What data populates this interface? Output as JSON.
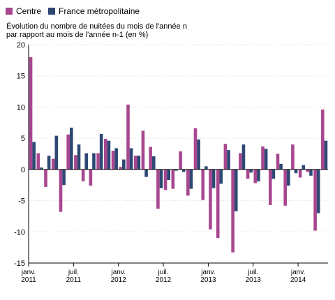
{
  "legend": {
    "items": [
      {
        "label": "Centre",
        "color": "#a8478f"
      },
      {
        "label": "France métropolitaine",
        "color": "#2e4874"
      }
    ]
  },
  "subtitle": {
    "line1": "Évolution du nombre de nuitées du mois de l'année n",
    "line2": "par rapport au mois de l'année n-1 (en %)"
  },
  "chart_data": {
    "type": "bar",
    "ylim": [
      -15,
      20
    ],
    "yticks": [
      -15,
      -10,
      -5,
      0,
      5,
      10,
      15,
      20
    ],
    "xticks": [
      {
        "index": 0,
        "line1": "janv.",
        "line2": "2011"
      },
      {
        "index": 6,
        "line1": "juil.",
        "line2": "2011"
      },
      {
        "index": 12,
        "line1": "janv.",
        "line2": "2012"
      },
      {
        "index": 18,
        "line1": "juil.",
        "line2": "2012"
      },
      {
        "index": 24,
        "line1": "janv.",
        "line2": "2013"
      },
      {
        "index": 30,
        "line1": "juil.",
        "line2": "2013"
      },
      {
        "index": 36,
        "line1": "janv.",
        "line2": "2014"
      }
    ],
    "series": [
      {
        "name": "Centre",
        "color": "#a8478f",
        "values": [
          18.0,
          2.6,
          -2.8,
          1.7,
          -6.8,
          5.6,
          2.3,
          -1.9,
          -2.6,
          2.6,
          4.9,
          3.0,
          0.4,
          10.4,
          2.2,
          6.2,
          3.6,
          -6.3,
          -3.3,
          -3.1,
          2.9,
          -4.2,
          6.6,
          -4.9,
          -9.6,
          -11.0,
          4.1,
          -13.3,
          2.6,
          -1.5,
          -2.2,
          3.7,
          -5.7,
          2.5,
          -5.8,
          4.0,
          -1.3,
          -0.4,
          -9.8,
          9.6
        ]
      },
      {
        "name": "France métropolitaine",
        "color": "#2e4874",
        "values": [
          4.4,
          0.3,
          2.2,
          5.4,
          -2.5,
          6.7,
          4.0,
          2.6,
          2.6,
          5.7,
          4.6,
          3.4,
          1.6,
          3.4,
          2.2,
          -1.2,
          2.1,
          -3.0,
          -1.7,
          -0.2,
          -0.4,
          -3.1,
          4.8,
          0.5,
          -3.0,
          -2.3,
          3.1,
          -6.7,
          4.0,
          -0.5,
          -1.9,
          3.3,
          -1.5,
          0.9,
          -2.6,
          -0.6,
          0.7,
          -1.0,
          -7.0,
          4.6
        ]
      }
    ]
  }
}
